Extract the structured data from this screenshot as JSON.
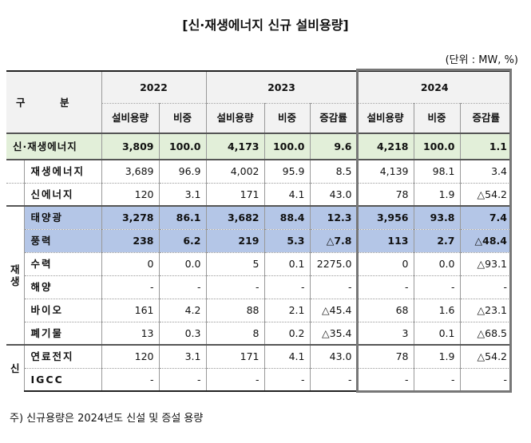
{
  "title": "[신·재생에너지 신규 설비용량]",
  "unit": "(단위 : MW, %)",
  "header": {
    "category": "구          분",
    "years": [
      "2022",
      "2023",
      "2024"
    ],
    "cols2022": [
      "설비용량",
      "비중"
    ],
    "cols2023": [
      "설비용량",
      "비중",
      "증감률"
    ],
    "cols2024": [
      "설비용량",
      "비중",
      "증감률"
    ]
  },
  "groups": {
    "renew": "재생",
    "new": "신"
  },
  "rows": [
    {
      "name": "신·재생에너지",
      "v": [
        "3,809",
        "100.0",
        "4,173",
        "100.0",
        "9.6",
        "4,218",
        "100.0",
        "1.1"
      ]
    },
    {
      "name": "재생에너지",
      "v": [
        "3,689",
        "96.9",
        "4,002",
        "95.9",
        "8.5",
        "4,139",
        "98.1",
        "3.4"
      ]
    },
    {
      "name": "신에너지",
      "v": [
        "120",
        "3.1",
        "171",
        "4.1",
        "43.0",
        "78",
        "1.9",
        "△54.2"
      ]
    },
    {
      "name": "태양광",
      "v": [
        "3,278",
        "86.1",
        "3,682",
        "88.4",
        "12.3",
        "3,956",
        "93.8",
        "7.4"
      ]
    },
    {
      "name": "풍력",
      "v": [
        "238",
        "6.2",
        "219",
        "5.3",
        "△7.8",
        "113",
        "2.7",
        "△48.4"
      ]
    },
    {
      "name": "수력",
      "v": [
        "0",
        "0.0",
        "5",
        "0.1",
        "2275.0",
        "0",
        "0.0",
        "△93.1"
      ]
    },
    {
      "name": "해양",
      "v": [
        "-",
        "-",
        "-",
        "-",
        "-",
        "-",
        "-",
        "-"
      ]
    },
    {
      "name": "바이오",
      "v": [
        "161",
        "4.2",
        "88",
        "2.1",
        "△45.4",
        "68",
        "1.6",
        "△23.1"
      ]
    },
    {
      "name": "폐기물",
      "v": [
        "13",
        "0.3",
        "8",
        "0.2",
        "△35.4",
        "3",
        "0.1",
        "△68.5"
      ]
    },
    {
      "name": "연료전지",
      "v": [
        "120",
        "3.1",
        "171",
        "4.1",
        "43.0",
        "78",
        "1.9",
        "△54.2"
      ]
    },
    {
      "name": "IGCC",
      "v": [
        "-",
        "-",
        "-",
        "-",
        "-",
        "-",
        "-",
        "-"
      ]
    }
  ],
  "colors": {
    "total_row": "#e2efd9",
    "highlight_rows": "#b4c6e7",
    "frame_2024": "#777777"
  },
  "note": "주) 신규용량은 2024년도 신설 및 증설 용량"
}
